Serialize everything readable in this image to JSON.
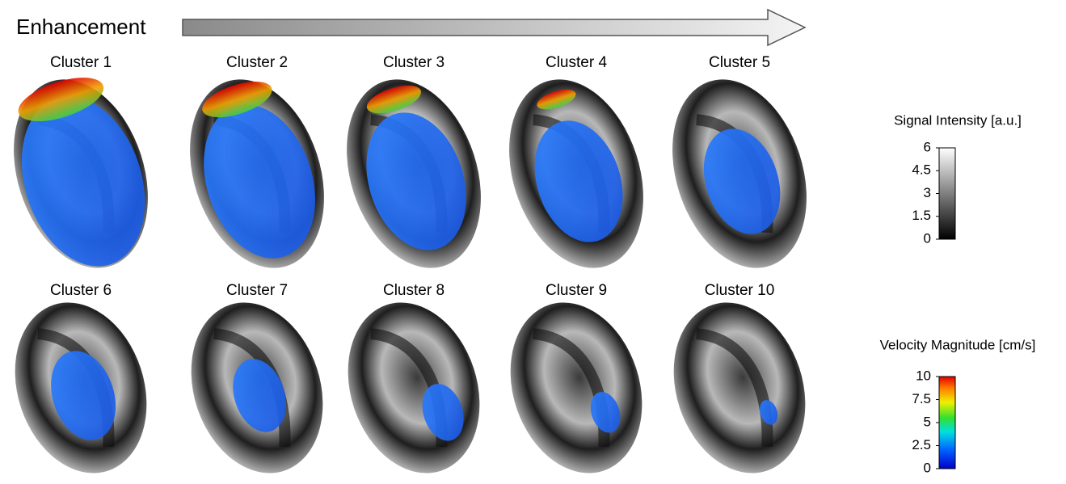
{
  "header": {
    "label": "Enhancement"
  },
  "clusters": [
    {
      "label": "Cluster 1"
    },
    {
      "label": "Cluster 2"
    },
    {
      "label": "Cluster 3"
    },
    {
      "label": "Cluster 4"
    },
    {
      "label": "Cluster 5"
    },
    {
      "label": "Cluster 6"
    },
    {
      "label": "Cluster 7"
    },
    {
      "label": "Cluster 8"
    },
    {
      "label": "Cluster 9"
    },
    {
      "label": "Cluster 10"
    }
  ],
  "colorbars": [
    {
      "title": "Signal Intensity [a.u.]",
      "lim": [
        0,
        6
      ],
      "ticks": [
        0,
        1.5,
        3,
        4.5,
        6
      ]
    },
    {
      "title": "Velocity Magnitude [cm/s]",
      "lim": [
        0,
        10
      ],
      "ticks": [
        0,
        2.5,
        5,
        7.5,
        10
      ]
    }
  ]
}
